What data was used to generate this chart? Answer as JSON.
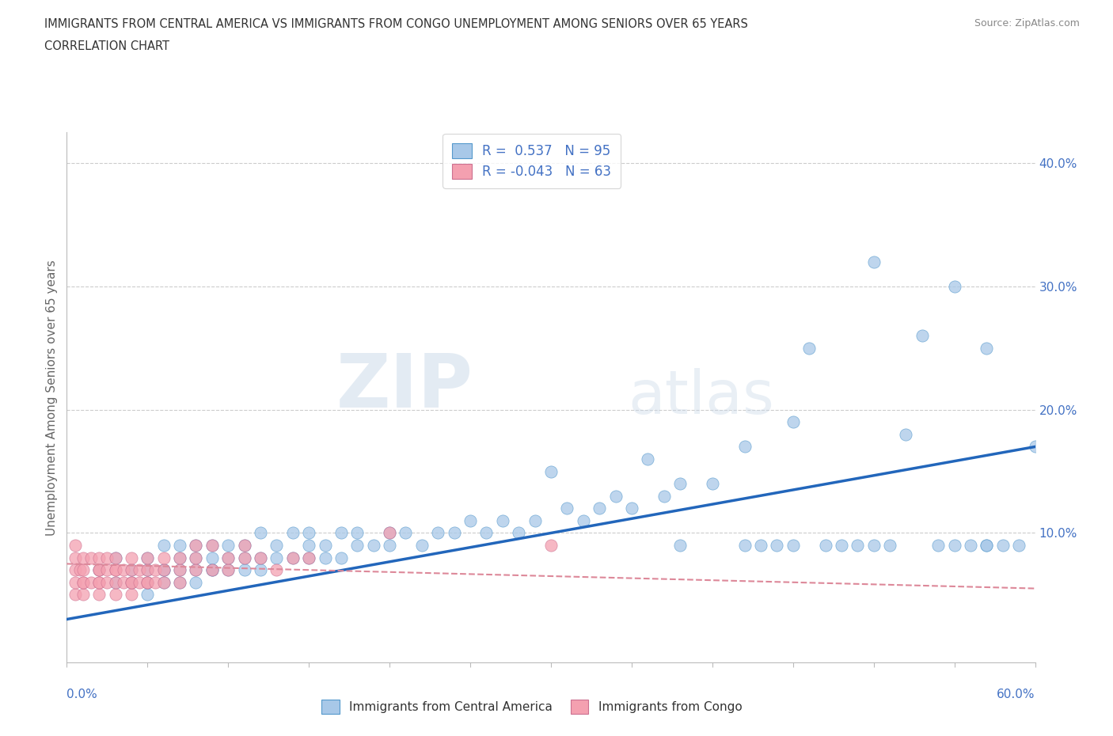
{
  "title_line1": "IMMIGRANTS FROM CENTRAL AMERICA VS IMMIGRANTS FROM CONGO UNEMPLOYMENT AMONG SENIORS OVER 65 YEARS",
  "title_line2": "CORRELATION CHART",
  "source": "Source: ZipAtlas.com",
  "ylabel": "Unemployment Among Seniors over 65 years",
  "xmin": 0.0,
  "xmax": 0.6,
  "ymin": -0.005,
  "ymax": 0.425,
  "r_blue": "0.537",
  "n_blue": 95,
  "r_pink": "-0.043",
  "n_pink": 63,
  "color_blue": "#a8c8e8",
  "color_pink": "#f4a0b0",
  "edge_blue": "#5599cc",
  "edge_pink": "#cc7090",
  "line_blue_color": "#2266bb",
  "line_pink_color": "#dd8899",
  "watermark_zip": "ZIP",
  "watermark_atlas": "atlas",
  "blue_scatter_x": [
    0.02,
    0.03,
    0.03,
    0.04,
    0.04,
    0.05,
    0.05,
    0.05,
    0.05,
    0.06,
    0.06,
    0.06,
    0.06,
    0.07,
    0.07,
    0.07,
    0.07,
    0.08,
    0.08,
    0.08,
    0.08,
    0.09,
    0.09,
    0.09,
    0.09,
    0.1,
    0.1,
    0.1,
    0.11,
    0.11,
    0.11,
    0.12,
    0.12,
    0.12,
    0.13,
    0.13,
    0.14,
    0.14,
    0.15,
    0.15,
    0.15,
    0.16,
    0.16,
    0.17,
    0.17,
    0.18,
    0.18,
    0.19,
    0.2,
    0.2,
    0.21,
    0.22,
    0.23,
    0.24,
    0.25,
    0.26,
    0.27,
    0.28,
    0.29,
    0.3,
    0.31,
    0.32,
    0.33,
    0.34,
    0.35,
    0.36,
    0.37,
    0.38,
    0.38,
    0.4,
    0.42,
    0.42,
    0.43,
    0.44,
    0.45,
    0.46,
    0.47,
    0.48,
    0.49,
    0.5,
    0.51,
    0.52,
    0.53,
    0.54,
    0.55,
    0.55,
    0.56,
    0.57,
    0.57,
    0.58,
    0.59,
    0.6,
    0.45,
    0.5,
    0.57
  ],
  "blue_scatter_y": [
    0.07,
    0.06,
    0.08,
    0.06,
    0.07,
    0.05,
    0.06,
    0.07,
    0.08,
    0.06,
    0.07,
    0.07,
    0.09,
    0.06,
    0.07,
    0.08,
    0.09,
    0.06,
    0.07,
    0.08,
    0.09,
    0.07,
    0.07,
    0.08,
    0.09,
    0.07,
    0.08,
    0.09,
    0.07,
    0.08,
    0.09,
    0.07,
    0.08,
    0.1,
    0.08,
    0.09,
    0.08,
    0.1,
    0.08,
    0.09,
    0.1,
    0.08,
    0.09,
    0.08,
    0.1,
    0.09,
    0.1,
    0.09,
    0.1,
    0.09,
    0.1,
    0.09,
    0.1,
    0.1,
    0.11,
    0.1,
    0.11,
    0.1,
    0.11,
    0.15,
    0.12,
    0.11,
    0.12,
    0.13,
    0.12,
    0.16,
    0.13,
    0.14,
    0.09,
    0.14,
    0.09,
    0.17,
    0.09,
    0.09,
    0.19,
    0.25,
    0.09,
    0.09,
    0.09,
    0.09,
    0.09,
    0.18,
    0.26,
    0.09,
    0.09,
    0.3,
    0.09,
    0.09,
    0.25,
    0.09,
    0.09,
    0.17,
    0.09,
    0.32,
    0.09
  ],
  "pink_scatter_x": [
    0.005,
    0.005,
    0.005,
    0.005,
    0.005,
    0.008,
    0.01,
    0.01,
    0.01,
    0.01,
    0.01,
    0.015,
    0.015,
    0.02,
    0.02,
    0.02,
    0.02,
    0.02,
    0.02,
    0.025,
    0.025,
    0.025,
    0.03,
    0.03,
    0.03,
    0.03,
    0.03,
    0.035,
    0.035,
    0.04,
    0.04,
    0.04,
    0.04,
    0.04,
    0.045,
    0.045,
    0.05,
    0.05,
    0.05,
    0.05,
    0.055,
    0.055,
    0.06,
    0.06,
    0.06,
    0.07,
    0.07,
    0.07,
    0.08,
    0.08,
    0.08,
    0.09,
    0.09,
    0.1,
    0.1,
    0.11,
    0.11,
    0.12,
    0.13,
    0.14,
    0.15,
    0.2,
    0.3
  ],
  "pink_scatter_y": [
    0.05,
    0.06,
    0.07,
    0.08,
    0.09,
    0.07,
    0.05,
    0.06,
    0.06,
    0.07,
    0.08,
    0.06,
    0.08,
    0.05,
    0.06,
    0.06,
    0.07,
    0.07,
    0.08,
    0.06,
    0.07,
    0.08,
    0.05,
    0.06,
    0.07,
    0.07,
    0.08,
    0.06,
    0.07,
    0.05,
    0.06,
    0.06,
    0.07,
    0.08,
    0.06,
    0.07,
    0.06,
    0.06,
    0.07,
    0.08,
    0.06,
    0.07,
    0.06,
    0.07,
    0.08,
    0.06,
    0.07,
    0.08,
    0.07,
    0.08,
    0.09,
    0.07,
    0.09,
    0.07,
    0.08,
    0.08,
    0.09,
    0.08,
    0.07,
    0.08,
    0.08,
    0.1,
    0.09
  ],
  "blue_line_x": [
    0.0,
    0.6
  ],
  "blue_line_y": [
    0.03,
    0.17
  ],
  "pink_line_x": [
    0.0,
    0.6
  ],
  "pink_line_y": [
    0.075,
    0.055
  ]
}
